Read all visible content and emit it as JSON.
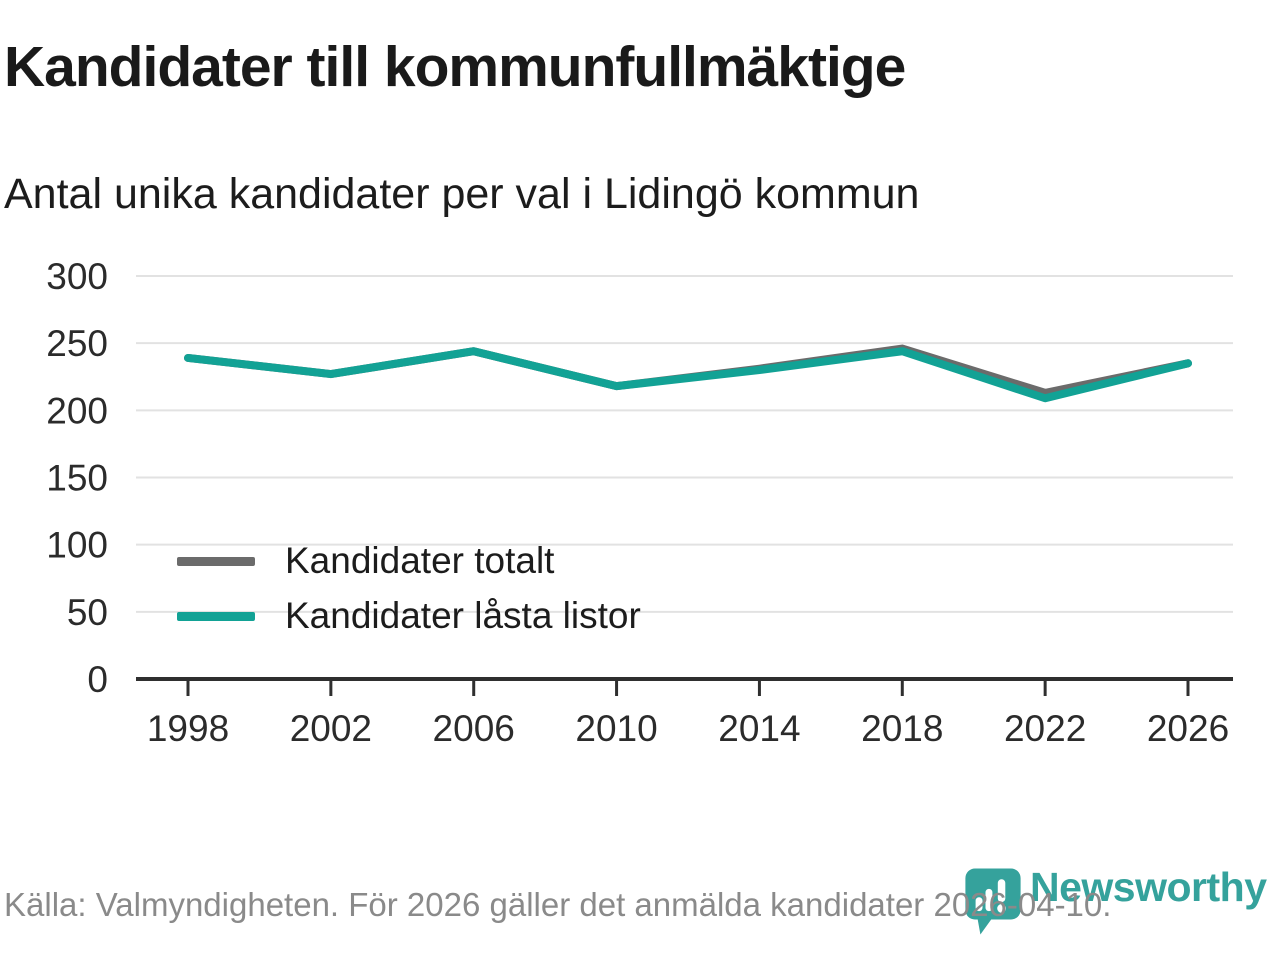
{
  "header": {
    "title": "Kandidater till kommunfullmäktige",
    "subtitle": "Antal unika kandidater per val i Lidingö kommun"
  },
  "chart_data": {
    "type": "line",
    "x": [
      1998,
      2002,
      2006,
      2010,
      2014,
      2018,
      2022,
      2026
    ],
    "series": [
      {
        "name": "Kandidater totalt",
        "color": "#6b6b6b",
        "values": [
          239,
          227,
          244,
          218,
          231,
          246,
          213,
          235
        ]
      },
      {
        "name": "Kandidater låsta listor",
        "color": "#12a295",
        "values": [
          239,
          227,
          244,
          218,
          230,
          244,
          209,
          235
        ]
      }
    ],
    "yticks": [
      0,
      50,
      100,
      150,
      200,
      250,
      300
    ],
    "ylim": [
      0,
      300
    ],
    "grid": true,
    "grid_color": "#e2e2e2",
    "axis_color": "#2f2f2f",
    "legend_position": "inside-left-bottom",
    "line_width": 8
  },
  "footer": {
    "source": "Källa: Valmyndigheten. För 2026 gäller det anmälda kandidater 2026-04-10.",
    "brand": "Newsworthy",
    "brand_color": "#35a29c"
  }
}
